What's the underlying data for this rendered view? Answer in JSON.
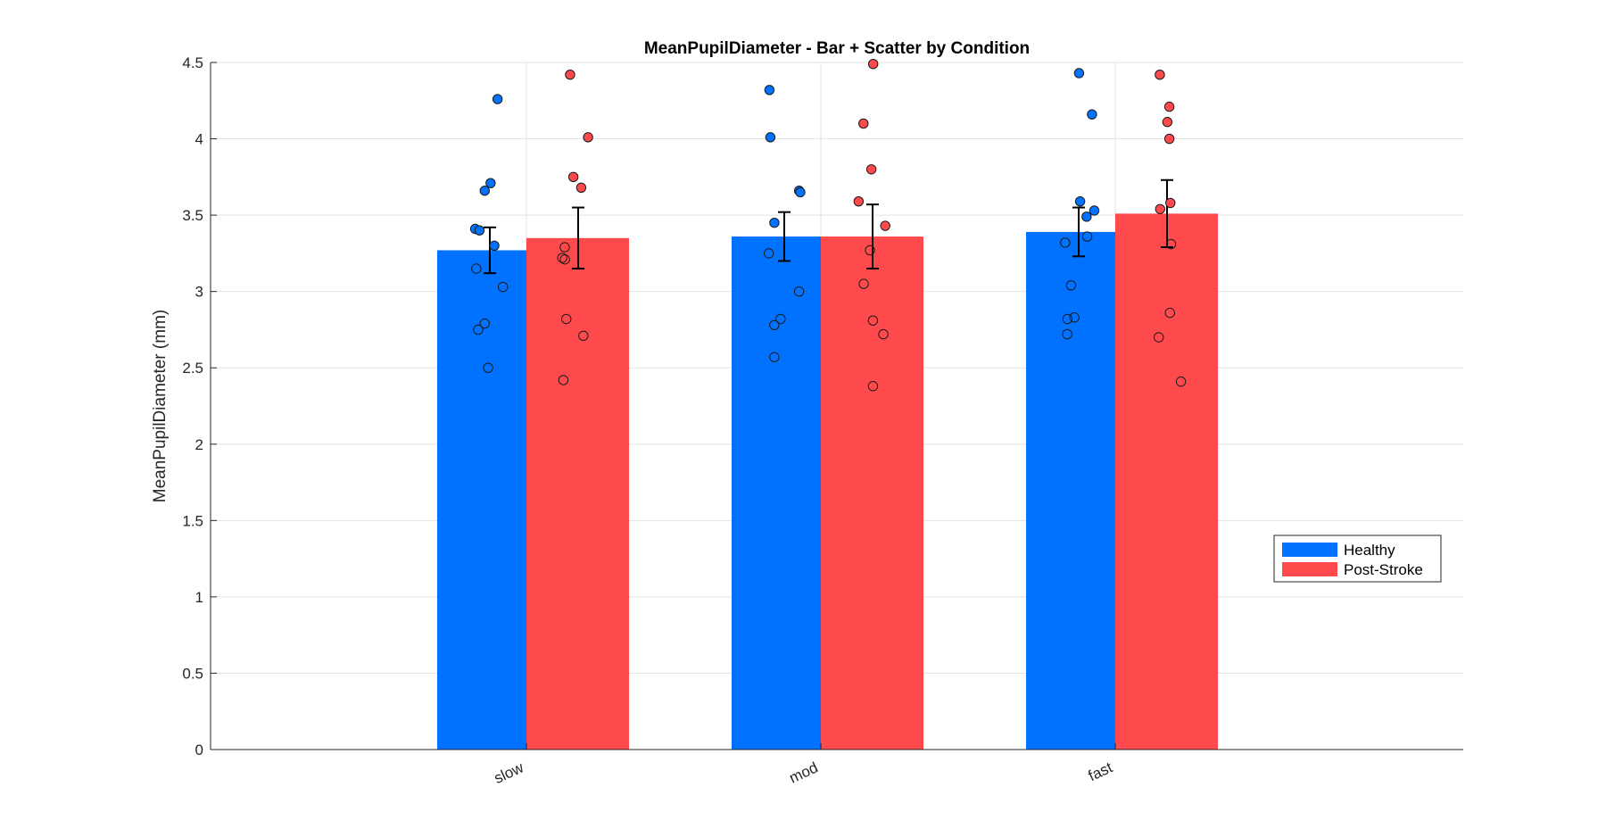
{
  "chart_data": {
    "type": "bar",
    "title": "MeanPupilDiameter - Bar + Scatter by Condition",
    "xlabel": "",
    "ylabel": "MeanPupilDiameter (mm)",
    "ylim": [
      0,
      4.5
    ],
    "yticks": [
      0,
      0.5,
      1,
      1.5,
      2,
      2.5,
      3,
      3.5,
      4,
      4.5
    ],
    "ytick_labels": [
      "0",
      "0.5",
      "1",
      "1.5",
      "2",
      "2.5",
      "3",
      "3.5",
      "4",
      "4.5"
    ],
    "categories": [
      "slow",
      "mod",
      "fast"
    ],
    "grid": true,
    "legend_position": "right",
    "series": [
      {
        "name": "Healthy",
        "color": "#0072FF",
        "values": [
          3.27,
          3.36,
          3.39
        ],
        "error": [
          0.15,
          0.16,
          0.16
        ],
        "points": [
          [
            4.26,
            3.71,
            3.66,
            3.41,
            3.4,
            3.3,
            3.15,
            3.03,
            2.79,
            2.75,
            2.5
          ],
          [
            4.32,
            4.01,
            3.66,
            3.65,
            3.45,
            3.25,
            3.0,
            2.82,
            2.78,
            2.57
          ],
          [
            4.43,
            4.16,
            3.59,
            3.53,
            3.49,
            3.36,
            3.32,
            3.04,
            2.83,
            2.82,
            2.72
          ]
        ]
      },
      {
        "name": "Post-Stroke",
        "color": "#FF4A4D",
        "values": [
          3.35,
          3.36,
          3.51
        ],
        "error": [
          0.2,
          0.21,
          0.22
        ],
        "points": [
          [
            4.42,
            4.01,
            3.75,
            3.68,
            3.29,
            3.22,
            3.21,
            2.82,
            2.71,
            2.42
          ],
          [
            4.49,
            4.1,
            3.8,
            3.59,
            3.43,
            3.27,
            3.05,
            2.81,
            2.72,
            2.38
          ],
          [
            4.42,
            4.21,
            4.11,
            4.0,
            3.58,
            3.54,
            3.31,
            2.86,
            2.7,
            2.41
          ]
        ]
      }
    ]
  }
}
